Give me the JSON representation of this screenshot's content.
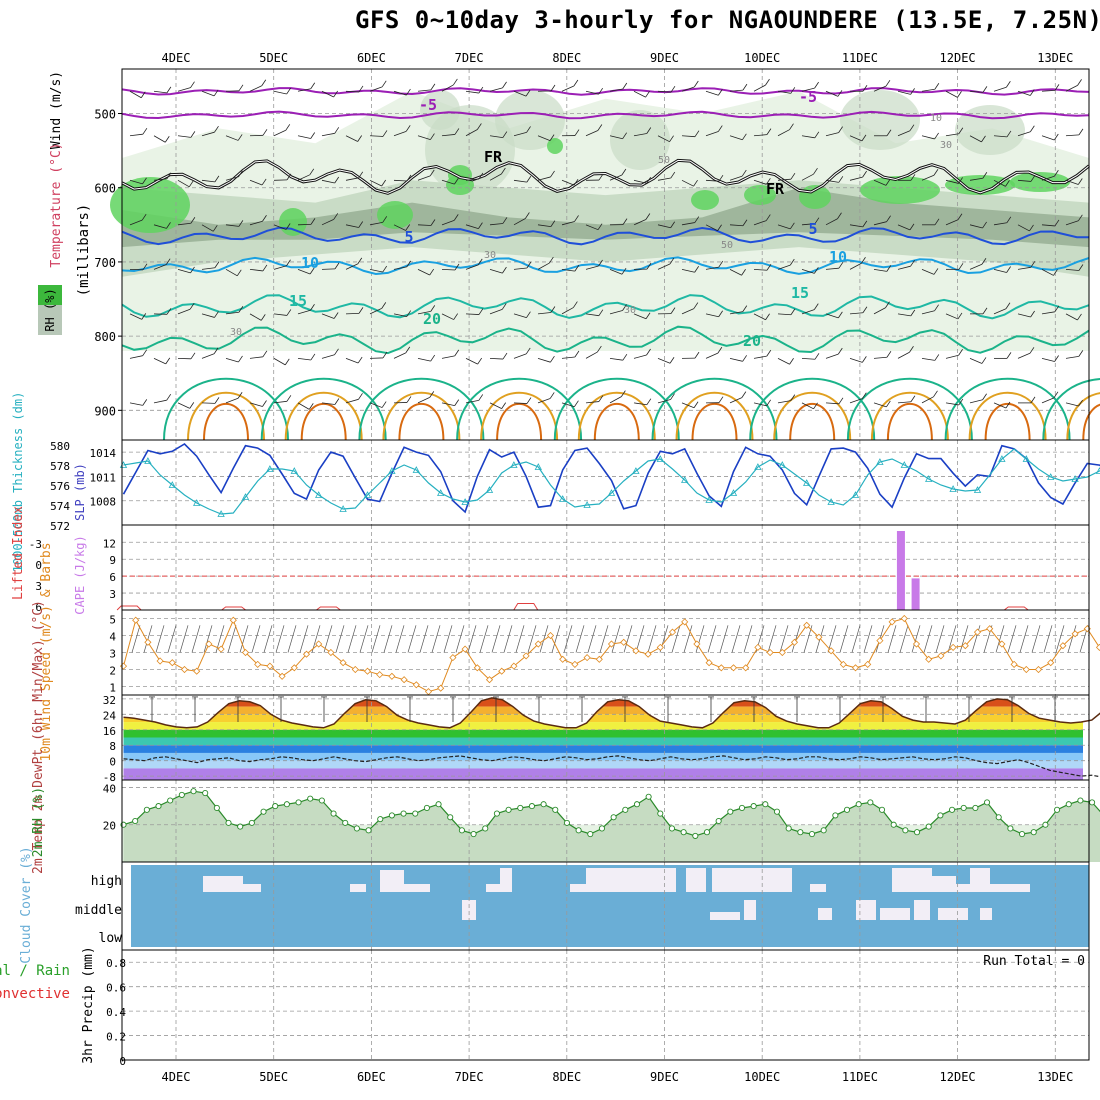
{
  "title": "GFS 0~10day 3-hourly for NGAOUNDERE (13.5E, 7.25N)",
  "colors": {
    "rh_light": "#e9f3e6",
    "rh_mid": "#c9dcc6",
    "rh_dark": "#9fb69c",
    "rh_green": "#5fd35f",
    "temp_purple": "#9b1fb5",
    "temp_blue": "#1f4fd8",
    "temp_cyan": "#1aa0e0",
    "temp_teal": "#1fb8a4",
    "temp_green": "#1bb38a",
    "temp_orange": "#e0a020",
    "temp_dark_orange": "#d86a10",
    "slp": "#1a3fc4",
    "thickness": "#26b0c0",
    "cape": "#c87ae8",
    "lifted": "#e04040",
    "wind": "#e08a20",
    "rh2m": "#2a8a2a",
    "cloud": "#6aaed6",
    "cloud_gap": "#f2eef6"
  },
  "chart_data": [
    {
      "panel": "upper-air",
      "type": "contour",
      "dates": [
        "4DEC",
        "5DEC",
        "6DEC",
        "7DEC",
        "8DEC",
        "9DEC",
        "10DEC",
        "11DEC",
        "12DEC",
        "13DEC"
      ],
      "ylabel": "(millibars)",
      "side_labels": [
        "Wind (m/s)",
        "Temperature (°C)",
        "RH (%)"
      ],
      "ylim": [
        440,
        940
      ],
      "yticks": [
        "500",
        "600",
        "700",
        "800",
        "900"
      ],
      "temp_labels": [
        "-5",
        "-5",
        "FR",
        "FR",
        "5",
        "5",
        "10",
        "10",
        "15",
        "15",
        "20",
        "20"
      ],
      "rh_labels": [
        "10",
        "30",
        "30",
        "50",
        "50",
        "30",
        "30"
      ],
      "rh_legend": [
        "RH (%)"
      ]
    },
    {
      "panel": "slp-thickness",
      "type": "line",
      "ylabel_left": "1000-500mb Thickness (dm)",
      "ylabel_right": "SLP (mb)",
      "yticks_left": [
        "580",
        "578",
        "576",
        "574",
        "572"
      ],
      "yticks_right": [
        "1014",
        "1011",
        "1008"
      ],
      "ylim_slp": [
        1005,
        1015.5
      ],
      "ylim_thick": [
        572,
        580.5
      ],
      "series": [
        {
          "name": "SLP (mb)",
          "values": [
            1008.8,
            1011.5,
            1014.2,
            1013.8,
            1014.1,
            1015.0,
            1013.5,
            1011.2,
            1009.0,
            1012.0,
            1014.8,
            1014.5,
            1013.6,
            1011.3,
            1008.9,
            1008.2,
            1011.8,
            1014.0,
            1013.5,
            1010.8,
            1008.2,
            1007.9,
            1011.4,
            1014.6,
            1014.0,
            1013.6,
            1011.6,
            1008.0,
            1006.6,
            1011.0,
            1014.3,
            1013.4,
            1014.0,
            1011.0,
            1007.2,
            1007.4,
            1011.8,
            1014.2,
            1014.5,
            1012.6,
            1010.5,
            1007.0,
            1007.4,
            1011.4,
            1014.1,
            1013.8,
            1014.4,
            1011.4,
            1008.6,
            1007.3,
            1011.6,
            1014.6,
            1013.8,
            1013.5,
            1011.8,
            1008.9,
            1007.5,
            1011.0,
            1014.4,
            1014.5,
            1014.0,
            1012.0,
            1008.8,
            1007.2,
            1010.8,
            1013.8,
            1013.2,
            1013.2,
            1011.4,
            1009.8,
            1011.2,
            1011.0,
            1014.8,
            1014.4,
            1013.2,
            1010.2,
            1008.4,
            1007.6,
            1010.2,
            1012.6,
            1012.4,
            1011.4,
            1008.4,
            1006.6,
            1009.0,
            1010.6,
            1010.8,
            1011.4,
            1012.6
          ]
        },
        {
          "name": "1000-500mb Thickness (dm)",
          "values": [
            578.0,
            578.2,
            578.4,
            577.0,
            576.0,
            575.0,
            574.2,
            573.6,
            573.1,
            573.2,
            574.8,
            576.4,
            577.6,
            577.6,
            577.4,
            576.0,
            575.0,
            574.2,
            573.6,
            573.7,
            575.0,
            576.2,
            577.4,
            578.0,
            577.5,
            576.2,
            575.2,
            574.6,
            574.3,
            574.5,
            575.5,
            577.2,
            578.0,
            578.3,
            577.8,
            576.0,
            574.6,
            573.8,
            574.0,
            574.1,
            575.2,
            576.4,
            577.4,
            578.4,
            578.6,
            577.6,
            576.5,
            575.2,
            574.5,
            574.3,
            575.2,
            576.3,
            577.8,
            578.5,
            578.0,
            577.1,
            576.2,
            575.0,
            574.3,
            574.0,
            575.0,
            577.0,
            578.3,
            578.6,
            578.0,
            577.4,
            576.6,
            576.0,
            575.6,
            575.4,
            575.5,
            577.0,
            578.6,
            579.6,
            578.6,
            577.6,
            576.8,
            576.4,
            576.6,
            576.8,
            577.4,
            578.3,
            578.8,
            579.4,
            578.4,
            577.2,
            575.8,
            575.0,
            575.4
          ]
        }
      ]
    },
    {
      "panel": "lifted-cape",
      "type": "bar",
      "ylabel_left": "Lifted Index",
      "ylabel_right": "CAPE (J/kg)",
      "yticks_left": [
        "-3",
        "0",
        "3",
        "6"
      ],
      "yticks_right": [
        "12",
        "9",
        "6",
        "3"
      ],
      "ylim_cape": [
        0,
        14
      ],
      "cape_bars": [
        {
          "date_index": 7.42,
          "value": 14.0
        },
        {
          "date_index": 7.57,
          "value": 5.6
        }
      ],
      "lifted_blips": [
        {
          "date_index": -0.48,
          "value": 5.6
        },
        {
          "date_index": 0.59,
          "value": 5.8
        },
        {
          "date_index": 1.56,
          "value": 5.8
        },
        {
          "date_index": 3.58,
          "value": 5.1
        },
        {
          "date_index": 8.6,
          "value": 5.8
        }
      ]
    },
    {
      "panel": "wind-10m",
      "type": "line",
      "ylabel": "10m Wind Speed (m/s) & Barbs",
      "yticks": [
        "5",
        "4",
        "3",
        "2",
        "1"
      ],
      "ylim": [
        0.5,
        5.5
      ],
      "series": [
        {
          "name": "10m Wind Speed (m/s)",
          "values": [
            2.2,
            4.9,
            3.6,
            2.5,
            2.4,
            2.0,
            1.9,
            3.5,
            3.2,
            4.9,
            3.0,
            2.3,
            2.2,
            1.6,
            2.1,
            2.9,
            3.5,
            3.0,
            2.4,
            2.0,
            1.9,
            1.7,
            1.6,
            1.4,
            1.1,
            0.7,
            0.9,
            2.7,
            3.2,
            2.1,
            1.4,
            1.9,
            2.2,
            2.8,
            3.5,
            4.0,
            2.6,
            2.3,
            2.7,
            2.6,
            3.5,
            3.6,
            3.1,
            2.9,
            3.3,
            4.2,
            4.8,
            3.5,
            2.4,
            2.1,
            2.1,
            2.1,
            3.3,
            3.0,
            3.0,
            3.6,
            4.6,
            3.9,
            3.1,
            2.3,
            2.1,
            2.3,
            3.7,
            4.8,
            5.0,
            3.5,
            2.6,
            2.8,
            3.3,
            3.4,
            4.2,
            4.4,
            3.5,
            2.3,
            2.0,
            2.0,
            2.4,
            3.4,
            4.1,
            4.4,
            3.3,
            4.9,
            4.6,
            4.1,
            4.2,
            3.5,
            2.5,
            2.2,
            2.8
          ]
        }
      ]
    },
    {
      "panel": "temp-2m",
      "type": "area",
      "ylabel": "2m Temp 2m DewPt (6hr Min/Max) (°C)",
      "yticks": [
        "32",
        "24",
        "16",
        "8",
        "0",
        "-8"
      ],
      "ylim": [
        -10,
        34
      ],
      "series": [
        {
          "name": "2m Temp",
          "values": [
            22.5,
            22.0,
            21.0,
            20.0,
            18.5,
            17.5,
            17.0,
            17.5,
            20.0,
            25.0,
            29.5,
            31.0,
            30.5,
            28.5,
            24.0,
            21.0,
            19.5,
            18.5,
            17.5,
            17.0,
            19.0,
            24.5,
            29.5,
            31.5,
            31.0,
            28.0,
            23.5,
            21.0,
            19.5,
            18.5,
            17.5,
            17.0,
            19.5,
            25.0,
            31.0,
            32.5,
            31.5,
            28.0,
            23.5,
            20.5,
            19.0,
            18.0,
            17.0,
            17.0,
            19.5,
            25.5,
            30.5,
            31.5,
            31.0,
            28.0,
            23.5,
            20.5,
            19.5,
            18.5,
            17.5,
            17.0,
            19.5,
            25.0,
            30.0,
            31.0,
            30.5,
            27.5,
            23.0,
            20.5,
            19.0,
            18.0,
            17.0,
            17.0,
            19.5,
            24.5,
            29.5,
            31.0,
            30.5,
            27.0,
            23.0,
            21.0,
            20.0,
            20.0,
            19.5,
            19.0,
            21.0,
            26.0,
            30.5,
            32.0,
            31.5,
            28.5,
            24.5,
            22.0,
            21.0,
            20.0,
            19.5,
            20.0,
            21.0,
            25.5,
            31.0,
            33.0,
            32.0,
            28.5,
            24.5,
            22.0,
            21.0,
            20.0,
            19.5
          ]
        },
        {
          "name": "2m DewPt",
          "values": [
            1.0,
            0.5,
            0.0,
            1.5,
            2.0,
            1.0,
            0.0,
            -1.0,
            0.5,
            1.0,
            1.5,
            0.0,
            -0.5,
            0.5,
            1.0,
            2.0,
            1.5,
            0.5,
            0.0,
            1.0,
            2.0,
            1.0,
            0.0,
            -0.5,
            0.5,
            1.5,
            2.0,
            1.0,
            0.0,
            0.5,
            1.5,
            2.0,
            2.5,
            1.5,
            0.5,
            0.0,
            1.0,
            2.0,
            1.5,
            0.5,
            0.0,
            1.0,
            2.0,
            1.5,
            0.5,
            1.0,
            2.0,
            2.5,
            1.5,
            0.5,
            0.0,
            1.0,
            2.0,
            1.0,
            0.5,
            1.0,
            2.0,
            2.5,
            1.5,
            0.5,
            1.0,
            2.0,
            1.5,
            0.5,
            1.0,
            2.0,
            2.0,
            1.0,
            0.5,
            1.0,
            2.0,
            1.5,
            0.5,
            1.0,
            1.5,
            2.0,
            1.0,
            0.5,
            1.0,
            2.0,
            1.5,
            0.0,
            -1.0,
            -1.5,
            -0.5,
            0.5,
            -1.0,
            -3.0,
            -5.0,
            -6.0,
            -7.0,
            -8.0,
            -7.5,
            -8.5,
            -9.0,
            -8.0,
            -8.5,
            -9.0,
            -8.5
          ]
        }
      ]
    },
    {
      "panel": "rh-2m",
      "type": "area",
      "ylabel": "2m RH (%)",
      "yticks": [
        "40",
        "20"
      ],
      "ylim": [
        0,
        44
      ],
      "series": [
        {
          "name": "2m RH",
          "values": [
            20.0,
            22.0,
            28.0,
            30.0,
            33.0,
            36.0,
            38.0,
            37.0,
            29.0,
            21.0,
            19.0,
            21.0,
            27.0,
            30.0,
            31.0,
            32.0,
            34.0,
            33.0,
            26.0,
            21.0,
            18.0,
            17.0,
            23.0,
            25.0,
            26.0,
            26.0,
            29.0,
            31.0,
            24.0,
            17.0,
            15.0,
            18.0,
            26.0,
            28.0,
            29.0,
            30.0,
            31.0,
            28.0,
            21.0,
            17.0,
            15.0,
            18.0,
            24.0,
            28.0,
            31.0,
            35.0,
            26.0,
            18.0,
            16.0,
            14.0,
            16.0,
            22.0,
            27.0,
            29.0,
            30.0,
            31.0,
            27.0,
            18.0,
            16.0,
            15.0,
            17.0,
            25.0,
            28.0,
            31.0,
            32.0,
            28.0,
            20.0,
            17.0,
            16.0,
            19.0,
            25.0,
            28.0,
            29.0,
            29.0,
            32.0,
            24.0,
            18.0,
            15.0,
            16.0,
            20.0,
            28.0,
            31.0,
            33.0,
            32.0,
            25.0,
            16.0,
            15.0,
            16.0,
            20.0,
            21.0,
            20.0,
            21.0,
            22.0
          ]
        }
      ]
    },
    {
      "panel": "cloud-cover",
      "type": "heatmap",
      "ylabel": "Cloud Cover (%)",
      "levels": [
        "high",
        "middle",
        "low"
      ]
    },
    {
      "panel": "precip",
      "type": "bar",
      "ylabel": "3hr Precip (mm)",
      "side_labels": [
        "Total / Rain",
        "Convective"
      ],
      "yticks": [
        "0.8",
        "0.6",
        "0.4",
        "0.2",
        "0"
      ],
      "ylim": [
        0,
        0.9
      ],
      "annotation": "Run Total = 0",
      "values": []
    }
  ]
}
